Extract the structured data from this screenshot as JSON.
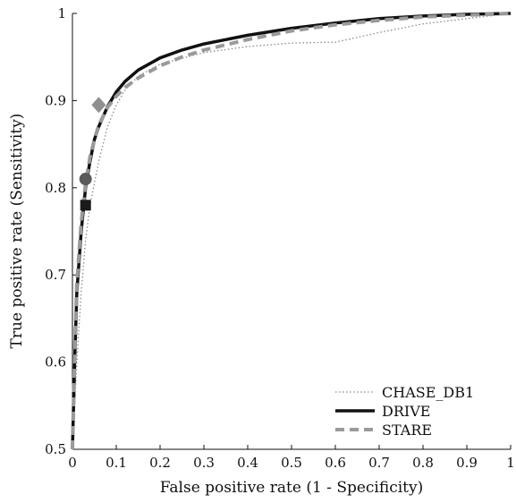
{
  "chart_data": {
    "type": "line",
    "title": "",
    "xlabel": "False positive rate (1 - Specificity)",
    "ylabel": "True positive rate (Sensitivity)",
    "xlim": [
      0,
      1
    ],
    "ylim": [
      0.5,
      1
    ],
    "xticks": [
      "0",
      "0.1",
      "0.2",
      "0.3",
      "0.4",
      "0.5",
      "0.6",
      "0.7",
      "0.8",
      "0.9",
      "1"
    ],
    "yticks": [
      "0.5",
      "0.6",
      "0.7",
      "0.8",
      "0.9",
      "1"
    ],
    "grid": false,
    "legend_position": "bottom-right",
    "series": [
      {
        "name": "CHASE_DB1",
        "color": "#8a8a8a",
        "style": "dotted",
        "x": [
          0.0,
          0.01,
          0.02,
          0.03,
          0.04,
          0.06,
          0.08,
          0.1,
          0.12,
          0.15,
          0.2,
          0.3,
          0.4,
          0.5,
          0.6,
          0.7,
          0.8,
          0.9,
          1.0
        ],
        "y": [
          0.5,
          0.6,
          0.68,
          0.74,
          0.78,
          0.83,
          0.87,
          0.895,
          0.912,
          0.928,
          0.942,
          0.955,
          0.962,
          0.966,
          0.967,
          0.978,
          0.988,
          0.994,
          1.0
        ]
      },
      {
        "name": "DRIVE",
        "color": "#111111",
        "style": "solid",
        "x": [
          0.0,
          0.005,
          0.01,
          0.02,
          0.03,
          0.04,
          0.05,
          0.06,
          0.08,
          0.1,
          0.12,
          0.15,
          0.2,
          0.25,
          0.3,
          0.4,
          0.5,
          0.6,
          0.7,
          0.8,
          0.9,
          1.0
        ],
        "y": [
          0.5,
          0.6,
          0.68,
          0.75,
          0.8,
          0.83,
          0.855,
          0.87,
          0.893,
          0.91,
          0.922,
          0.935,
          0.949,
          0.958,
          0.965,
          0.975,
          0.983,
          0.989,
          0.994,
          0.997,
          0.999,
          1.0
        ]
      },
      {
        "name": "STARE",
        "color": "#9a9a9a",
        "style": "dashed",
        "x": [
          0.0,
          0.005,
          0.01,
          0.02,
          0.03,
          0.04,
          0.05,
          0.06,
          0.08,
          0.1,
          0.12,
          0.15,
          0.2,
          0.25,
          0.3,
          0.4,
          0.5,
          0.6,
          0.7,
          0.8,
          0.9,
          1.0
        ],
        "y": [
          0.5,
          0.61,
          0.69,
          0.76,
          0.805,
          0.835,
          0.855,
          0.872,
          0.892,
          0.905,
          0.915,
          0.926,
          0.94,
          0.95,
          0.958,
          0.97,
          0.98,
          0.987,
          0.992,
          0.996,
          0.998,
          1.0
        ]
      }
    ],
    "markers": [
      {
        "series": "DRIVE",
        "shape": "square",
        "color": "#1a1a1a",
        "x": 0.03,
        "y": 0.78
      },
      {
        "series": "CHASE_DB1",
        "shape": "circle",
        "color": "#5a5a5a",
        "x": 0.03,
        "y": 0.81
      },
      {
        "series": "STARE",
        "shape": "diamond",
        "color": "#8f8f8f",
        "x": 0.06,
        "y": 0.895
      }
    ]
  }
}
